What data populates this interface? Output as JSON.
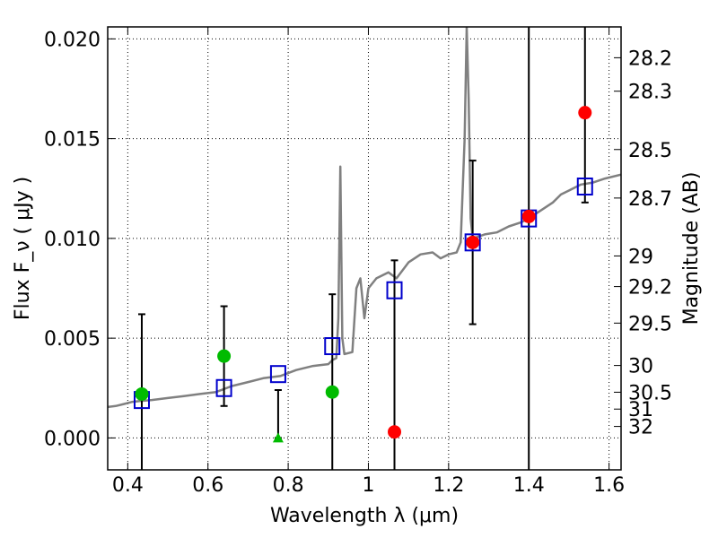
{
  "chart_data": {
    "type": "scatter",
    "xlabel": "Wavelength  λ (μm)",
    "ylabel": "Flux  F_ν  ( μJy )",
    "y2label": "Magnitude (AB)",
    "xlim": [
      0.35,
      1.63
    ],
    "ylim": [
      -0.0016,
      0.0206
    ],
    "grid": true,
    "x_ticks": [
      0.4,
      0.6,
      0.8,
      1.0,
      1.2,
      1.4,
      1.6
    ],
    "x_tick_labels": [
      "0.4",
      "0.6",
      "0.8",
      "1",
      "1.2",
      "1.4",
      "1.6"
    ],
    "y_ticks": [
      0.0,
      0.005,
      0.01,
      0.015,
      0.02
    ],
    "y_tick_labels": [
      "0.000",
      "0.005",
      "0.010",
      "0.015",
      "0.020"
    ],
    "mag_ticks": [
      {
        "mag": 28.2,
        "label": "28.2"
      },
      {
        "mag": 28.3,
        "label": "28.3"
      },
      {
        "mag": 28.5,
        "label": "28.5"
      },
      {
        "mag": 28.7,
        "label": "28.7"
      },
      {
        "mag": 29,
        "label": "29"
      },
      {
        "mag": 29.2,
        "label": "29.2"
      },
      {
        "mag": 29.5,
        "label": "29.5"
      },
      {
        "mag": 30,
        "label": "30"
      },
      {
        "mag": 30.5,
        "label": "30.5"
      },
      {
        "mag": 31,
        "label": "31"
      },
      {
        "mag": 32,
        "label": "32"
      }
    ],
    "series": [
      {
        "kind": "spectrum_line",
        "color": "#808080",
        "points": [
          [
            0.35,
            0.00155
          ],
          [
            0.37,
            0.0016
          ],
          [
            0.39,
            0.0017
          ],
          [
            0.41,
            0.0018
          ],
          [
            0.43,
            0.00185
          ],
          [
            0.46,
            0.0019
          ],
          [
            0.5,
            0.002
          ],
          [
            0.54,
            0.0021
          ],
          [
            0.58,
            0.0022
          ],
          [
            0.62,
            0.0023
          ],
          [
            0.66,
            0.0026
          ],
          [
            0.7,
            0.0028
          ],
          [
            0.74,
            0.003
          ],
          [
            0.78,
            0.0031
          ],
          [
            0.82,
            0.0034
          ],
          [
            0.86,
            0.0036
          ],
          [
            0.9,
            0.0037
          ],
          [
            0.91,
            0.0039
          ],
          [
            0.92,
            0.004
          ],
          [
            0.925,
            0.006
          ],
          [
            0.93,
            0.0136
          ],
          [
            0.935,
            0.005
          ],
          [
            0.94,
            0.0042
          ],
          [
            0.96,
            0.0043
          ],
          [
            0.97,
            0.0075
          ],
          [
            0.98,
            0.008
          ],
          [
            0.99,
            0.006
          ],
          [
            1.0,
            0.0075
          ],
          [
            1.02,
            0.008
          ],
          [
            1.05,
            0.0083
          ],
          [
            1.07,
            0.008
          ],
          [
            1.1,
            0.0088
          ],
          [
            1.13,
            0.0092
          ],
          [
            1.16,
            0.0093
          ],
          [
            1.18,
            0.009
          ],
          [
            1.2,
            0.0092
          ],
          [
            1.22,
            0.0093
          ],
          [
            1.23,
            0.0098
          ],
          [
            1.24,
            0.015
          ],
          [
            1.245,
            0.0206
          ],
          [
            1.25,
            0.017
          ],
          [
            1.255,
            0.011
          ],
          [
            1.26,
            0.01
          ],
          [
            1.29,
            0.0102
          ],
          [
            1.32,
            0.0103
          ],
          [
            1.35,
            0.0106
          ],
          [
            1.38,
            0.0108
          ],
          [
            1.4,
            0.011
          ],
          [
            1.43,
            0.0114
          ],
          [
            1.46,
            0.0118
          ],
          [
            1.48,
            0.0122
          ],
          [
            1.5,
            0.0124
          ],
          [
            1.53,
            0.0127
          ],
          [
            1.56,
            0.0128
          ],
          [
            1.59,
            0.013
          ],
          [
            1.63,
            0.0132
          ]
        ]
      },
      {
        "kind": "model_squares",
        "color": "#0000cc",
        "points": [
          [
            0.435,
            0.0019
          ],
          [
            0.64,
            0.0025
          ],
          [
            0.775,
            0.0032
          ],
          [
            0.91,
            0.0046
          ],
          [
            1.065,
            0.0074
          ],
          [
            1.26,
            0.0098
          ],
          [
            1.4,
            0.011
          ],
          [
            1.54,
            0.0126
          ]
        ]
      },
      {
        "kind": "green_circles",
        "color": "#00bb00",
        "points": [
          [
            0.435,
            0.0022
          ],
          [
            0.64,
            0.0041
          ],
          [
            0.91,
            0.0023
          ]
        ]
      },
      {
        "kind": "green_triangle_upper_limit",
        "color": "#00bb00",
        "points": [
          [
            0.775,
            0.0
          ]
        ]
      },
      {
        "kind": "red_circles",
        "color": "#ff0000",
        "points": [
          [
            1.065,
            0.0003
          ],
          [
            1.26,
            0.0098
          ],
          [
            1.4,
            0.0111
          ],
          [
            1.54,
            0.0163
          ]
        ]
      },
      {
        "kind": "error_bars",
        "color": "#000000",
        "bars": [
          {
            "x": 0.435,
            "low": -0.0016,
            "high": 0.0062
          },
          {
            "x": 0.64,
            "low": 0.0016,
            "high": 0.0066
          },
          {
            "x": 0.775,
            "low": 0.0,
            "high": 0.0024
          },
          {
            "x": 0.91,
            "low": -0.0016,
            "high": 0.0072
          },
          {
            "x": 1.065,
            "low": -0.0016,
            "high": 0.0089
          },
          {
            "x": 1.26,
            "low": 0.0057,
            "high": 0.0139
          },
          {
            "x": 1.4,
            "low": -0.0016,
            "high": 0.0206
          },
          {
            "x": 1.54,
            "low": 0.0118,
            "high": 0.0206
          }
        ]
      }
    ]
  }
}
